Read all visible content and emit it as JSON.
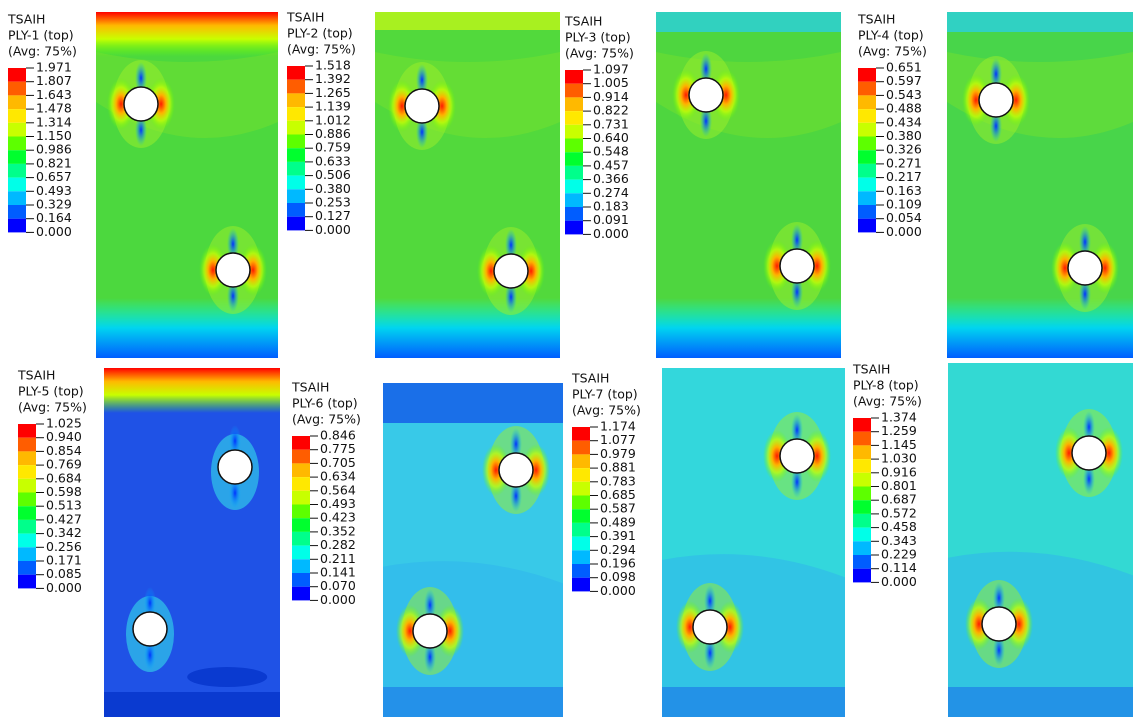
{
  "panels": [
    {
      "title": "TSAIH",
      "ply": "PLY-1 (top)",
      "avg": "(Avg: 75%)",
      "legend": [
        "1.971",
        "1.807",
        "1.643",
        "1.478",
        "1.314",
        "1.150",
        "0.986",
        "0.821",
        "0.657",
        "0.493",
        "0.329",
        "0.164",
        "0.000"
      ]
    },
    {
      "title": "TSAIH",
      "ply": "PLY-2 (top)",
      "avg": "(Avg: 75%)",
      "legend": [
        "1.518",
        "1.392",
        "1.265",
        "1.139",
        "1.012",
        "0.886",
        "0.759",
        "0.633",
        "0.506",
        "0.380",
        "0.253",
        "0.127",
        "0.000"
      ]
    },
    {
      "title": "TSAIH",
      "ply": "PLY-3 (top)",
      "avg": "(Avg: 75%)",
      "legend": [
        "1.097",
        "1.005",
        "0.914",
        "0.822",
        "0.731",
        "0.640",
        "0.548",
        "0.457",
        "0.366",
        "0.274",
        "0.183",
        "0.091",
        "0.000"
      ]
    },
    {
      "title": "TSAIH",
      "ply": "PLY-4 (top)",
      "avg": "(Avg: 75%)",
      "legend": [
        "0.651",
        "0.597",
        "0.543",
        "0.488",
        "0.434",
        "0.380",
        "0.326",
        "0.271",
        "0.217",
        "0.163",
        "0.109",
        "0.054",
        "0.000"
      ]
    },
    {
      "title": "TSAIH",
      "ply": "PLY-5 (top)",
      "avg": "(Avg: 75%)",
      "legend": [
        "1.025",
        "0.940",
        "0.854",
        "0.769",
        "0.684",
        "0.598",
        "0.513",
        "0.427",
        "0.342",
        "0.256",
        "0.171",
        "0.085",
        "0.000"
      ]
    },
    {
      "title": "TSAIH",
      "ply": "PLY-6 (top)",
      "avg": "(Avg: 75%)",
      "legend": [
        "0.846",
        "0.775",
        "0.705",
        "0.634",
        "0.564",
        "0.493",
        "0.423",
        "0.352",
        "0.282",
        "0.211",
        "0.141",
        "0.070",
        "0.000"
      ]
    },
    {
      "title": "TSAIH",
      "ply": "PLY-7 (top)",
      "avg": "(Avg: 75%)",
      "legend": [
        "1.174",
        "1.077",
        "0.979",
        "0.881",
        "0.783",
        "0.685",
        "0.587",
        "0.489",
        "0.391",
        "0.294",
        "0.196",
        "0.098",
        "0.000"
      ]
    },
    {
      "title": "TSAIH",
      "ply": "PLY-8 (top)",
      "avg": "(Avg: 75%)",
      "legend": [
        "1.374",
        "1.259",
        "1.145",
        "1.030",
        "0.916",
        "0.801",
        "0.687",
        "0.572",
        "0.458",
        "0.343",
        "0.229",
        "0.114",
        "0.000"
      ]
    }
  ]
}
